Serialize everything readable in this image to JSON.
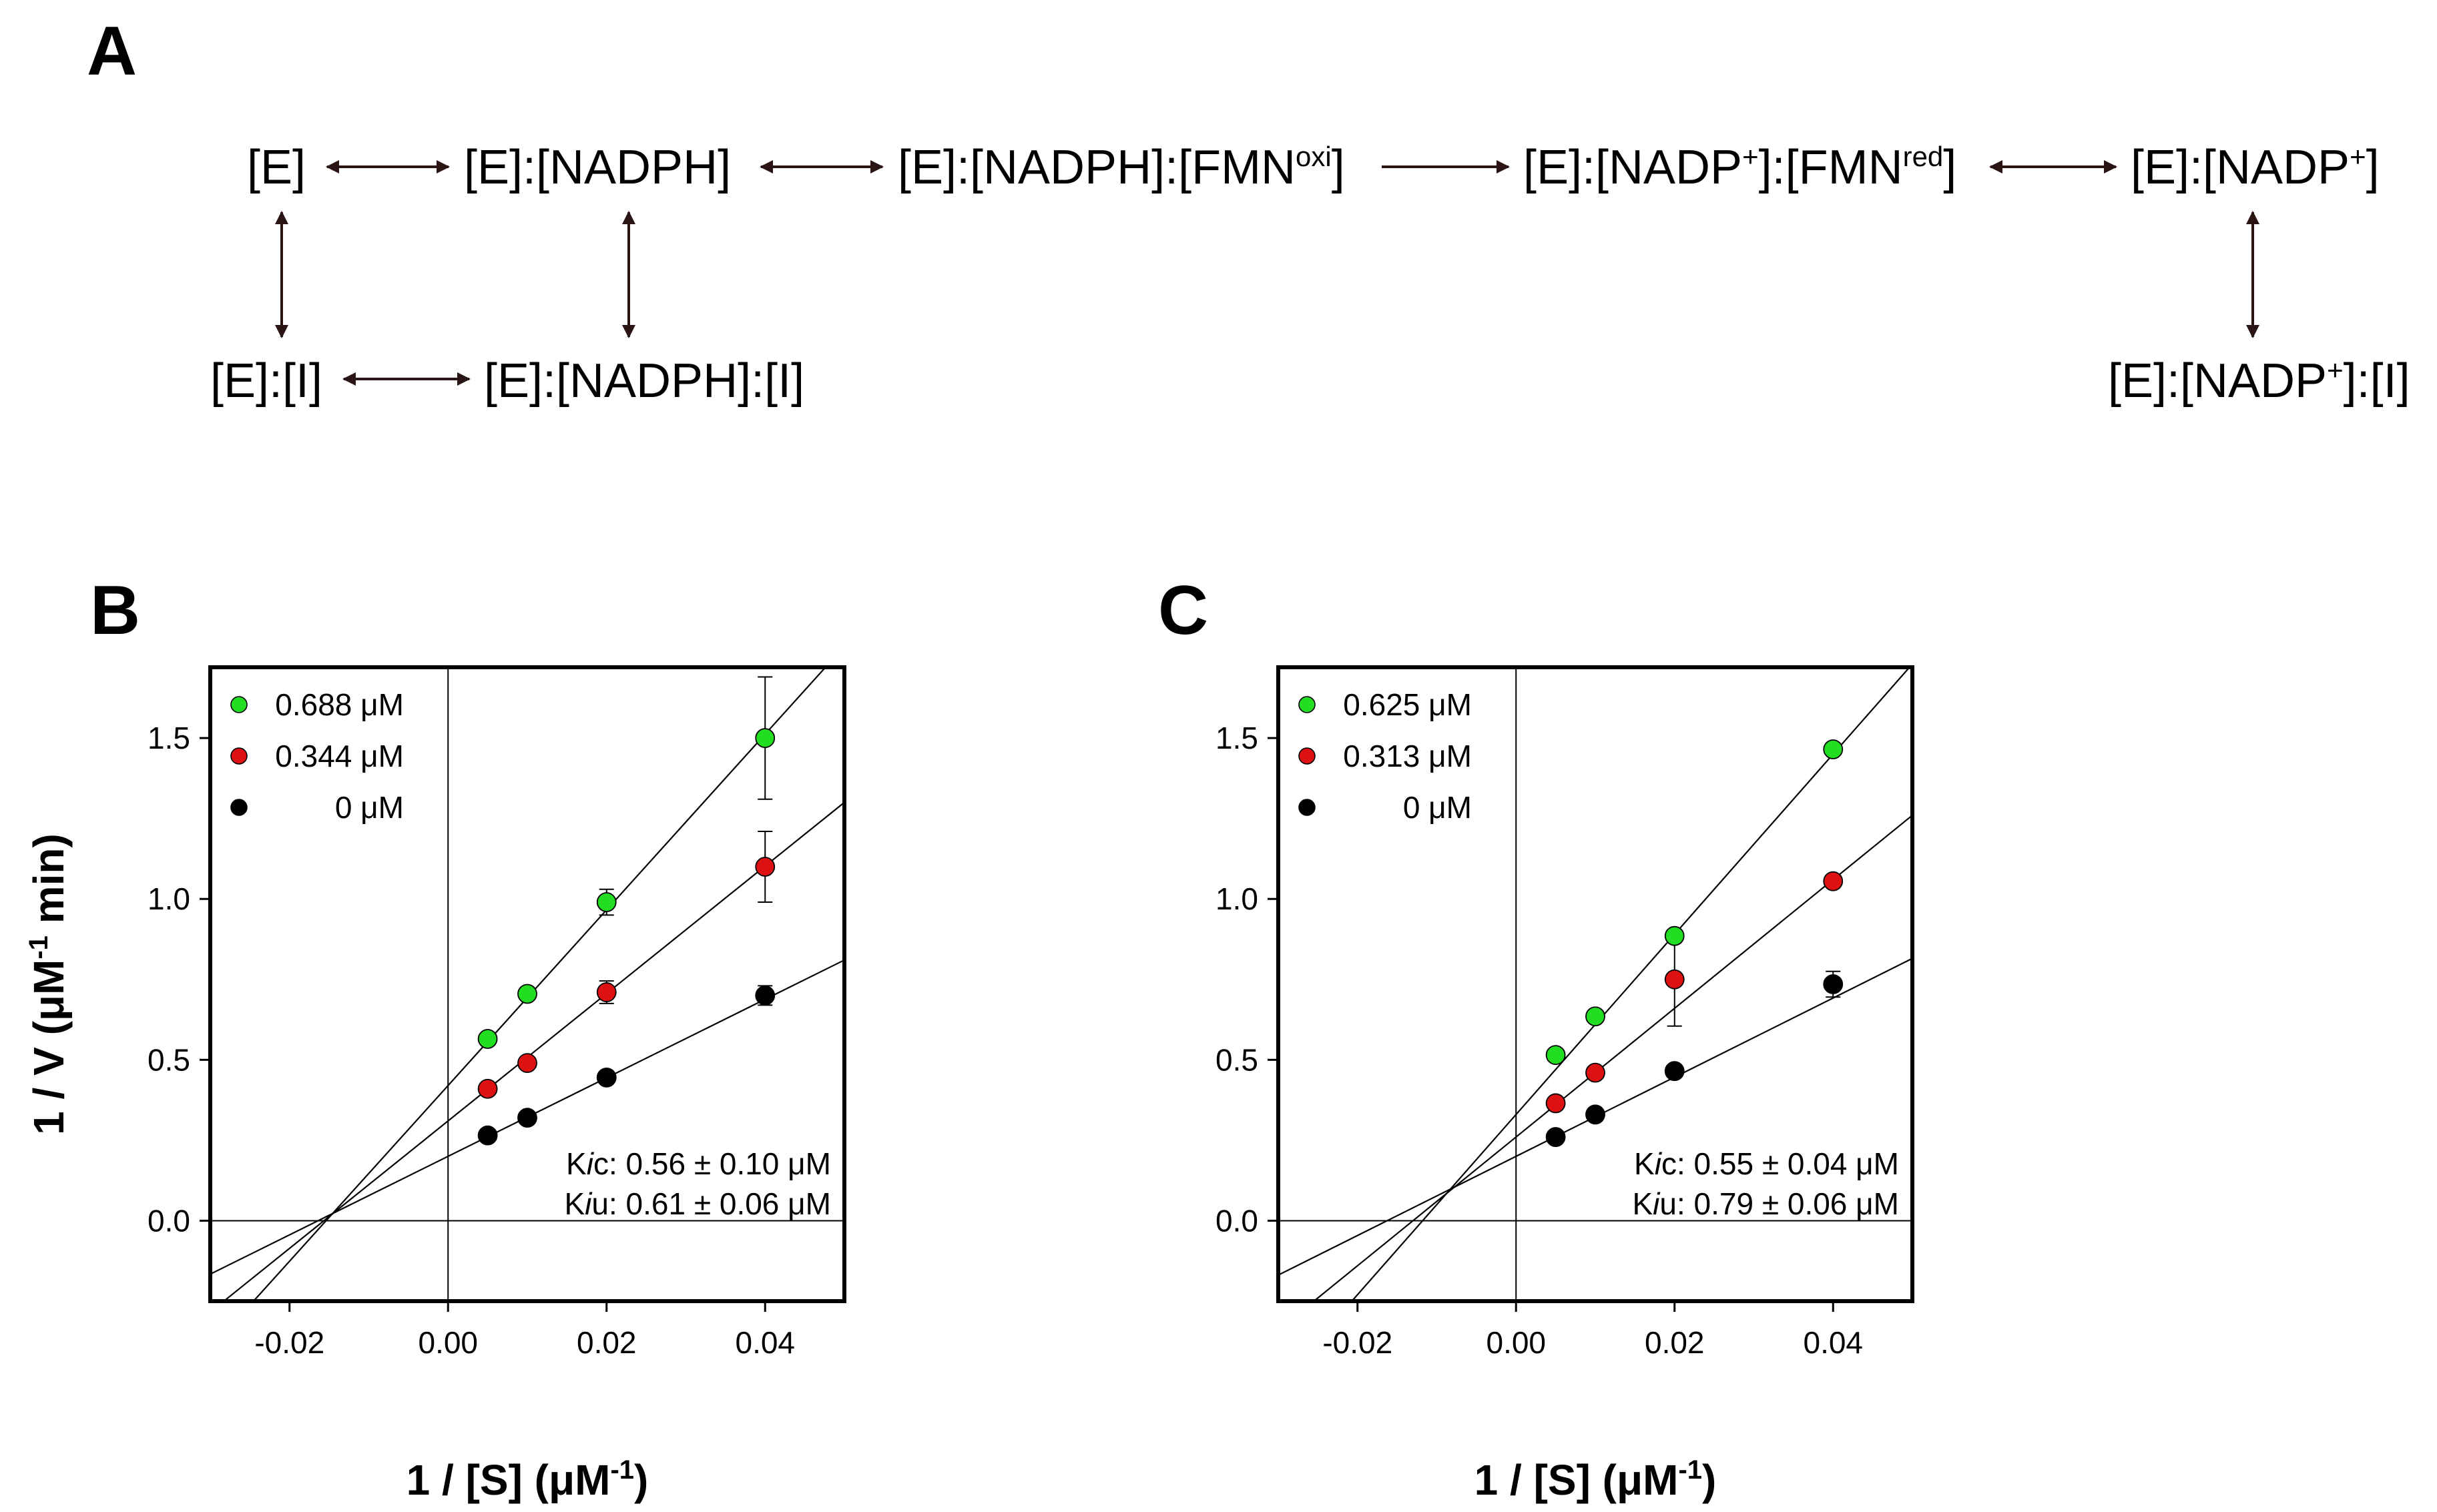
{
  "panel_a": {
    "letter": "A",
    "species": {
      "e": "[E]",
      "e_nadph": "[E]:[NADPH]",
      "e_nadph_fmn_base": "[E]:[NADPH]:[FMN",
      "e_nadph_fmn_sup": "oxi",
      "e_nadph_fmn_close": "]",
      "e_nadp_fmn_base": "[E]:[NADP",
      "e_nadp_fmn_sup1": "+",
      "e_nadp_fmn_mid": "]:[FMN",
      "e_nadp_fmn_sup2": "red",
      "e_nadp_fmn_close": "]",
      "e_nadp_base": "[E]:[NADP",
      "e_nadp_sup": "+",
      "e_nadp_close": "]",
      "e_i": "[E]:[I]",
      "e_nadph_i": "[E]:[NADPH]:[I]",
      "e_nadp_i_base": "[E]:[NADP",
      "e_nadp_i_sup": "+",
      "e_nadp_i_close": "]:[I]"
    },
    "colors": {
      "arrow": "#2a1414"
    }
  },
  "chart_data": [
    {
      "panel": "B",
      "type": "scatter",
      "xlabel_base": "1 / [S] (μM",
      "xlabel_sup": "-1",
      "xlabel_close": ")",
      "ylabel_base": "1 / V (μM",
      "ylabel_sup": "-1",
      "ylabel_close": " min)",
      "xlim": [
        -0.03,
        0.05
      ],
      "ylim": [
        -0.25,
        1.72
      ],
      "xticks": [
        -0.02,
        0.0,
        0.02,
        0.04
      ],
      "xtick_labels": [
        "-0.02",
        "0.00",
        "0.02",
        "0.04"
      ],
      "yticks": [
        0.0,
        0.5,
        1.0,
        1.5
      ],
      "ytick_labels": [
        "0.0",
        "0.5",
        "1.0",
        "1.5"
      ],
      "legend_position": "top-left",
      "series": [
        {
          "name": "0.688 μM",
          "color": "#22dd22",
          "x": [
            0.005,
            0.01,
            0.02,
            0.04
          ],
          "y": [
            0.565,
            0.705,
            0.99,
            1.5
          ],
          "err": [
            0.0,
            0.0,
            0.04,
            0.19
          ],
          "fit": {
            "slope": 27.3,
            "intercept": 0.42
          }
        },
        {
          "name": "0.344 μM",
          "color": "#dd1111",
          "x": [
            0.005,
            0.01,
            0.02,
            0.04
          ],
          "y": [
            0.41,
            0.49,
            0.71,
            1.1
          ],
          "err": [
            0.0,
            0.0,
            0.035,
            0.11
          ],
          "fit": {
            "slope": 19.8,
            "intercept": 0.31
          }
        },
        {
          "name": "0 μM",
          "color": "#000000",
          "x": [
            0.005,
            0.01,
            0.02,
            0.04
          ],
          "y": [
            0.265,
            0.32,
            0.445,
            0.7
          ],
          "err": [
            0.0,
            0.0,
            0.0,
            0.03
          ],
          "fit": {
            "slope": 12.2,
            "intercept": 0.2
          }
        }
      ],
      "constants": [
        {
          "name_k": "K",
          "name_sub": "i",
          "name_suffix": "c",
          "value": ": 0.56 ± 0.10  μM"
        },
        {
          "name_k": "K",
          "name_sub": "i",
          "name_suffix": "u",
          "value": ": 0.61 ± 0.06  μM"
        }
      ]
    },
    {
      "panel": "C",
      "type": "scatter",
      "xlabel_base": "1 / [S] (μM",
      "xlabel_sup": "-1",
      "xlabel_close": ")",
      "ylabel_base": "",
      "ylabel_sup": "",
      "ylabel_close": "",
      "xlim": [
        -0.03,
        0.05
      ],
      "ylim": [
        -0.25,
        1.72
      ],
      "xticks": [
        -0.02,
        0.0,
        0.02,
        0.04
      ],
      "xtick_labels": [
        "-0.02",
        "0.00",
        "0.02",
        "0.04"
      ],
      "yticks": [
        0.0,
        0.5,
        1.0,
        1.5
      ],
      "ytick_labels": [
        "0.0",
        "0.5",
        "1.0",
        "1.5"
      ],
      "legend_position": "top-left",
      "series": [
        {
          "name": "0.625 μM",
          "color": "#22dd22",
          "x": [
            0.005,
            0.01,
            0.02,
            0.04
          ],
          "y": [
            0.515,
            0.635,
            0.885,
            1.465
          ],
          "err": [
            0.0,
            0.0,
            0.0,
            0.0
          ],
          "fit": {
            "slope": 28.0,
            "intercept": 0.33
          }
        },
        {
          "name": "0.313 μM",
          "color": "#dd1111",
          "x": [
            0.005,
            0.01,
            0.02,
            0.04
          ],
          "y": [
            0.365,
            0.46,
            0.75,
            1.055
          ],
          "err": [
            0.0,
            0.0,
            0.145,
            0.0
          ],
          "fit": {
            "slope": 20.0,
            "intercept": 0.26
          }
        },
        {
          "name": "0 μM",
          "color": "#000000",
          "x": [
            0.005,
            0.01,
            0.02,
            0.04
          ],
          "y": [
            0.26,
            0.33,
            0.465,
            0.735
          ],
          "err": [
            0.0,
            0.0,
            0.0,
            0.04
          ],
          "fit": {
            "slope": 12.3,
            "intercept": 0.2
          }
        }
      ],
      "constants": [
        {
          "name_k": "K",
          "name_sub": "i",
          "name_suffix": "c",
          "value": ": 0.55 ± 0.04  μM"
        },
        {
          "name_k": "K",
          "name_sub": "i",
          "name_suffix": "u",
          "value": ": 0.79 ± 0.06  μM"
        }
      ]
    }
  ]
}
